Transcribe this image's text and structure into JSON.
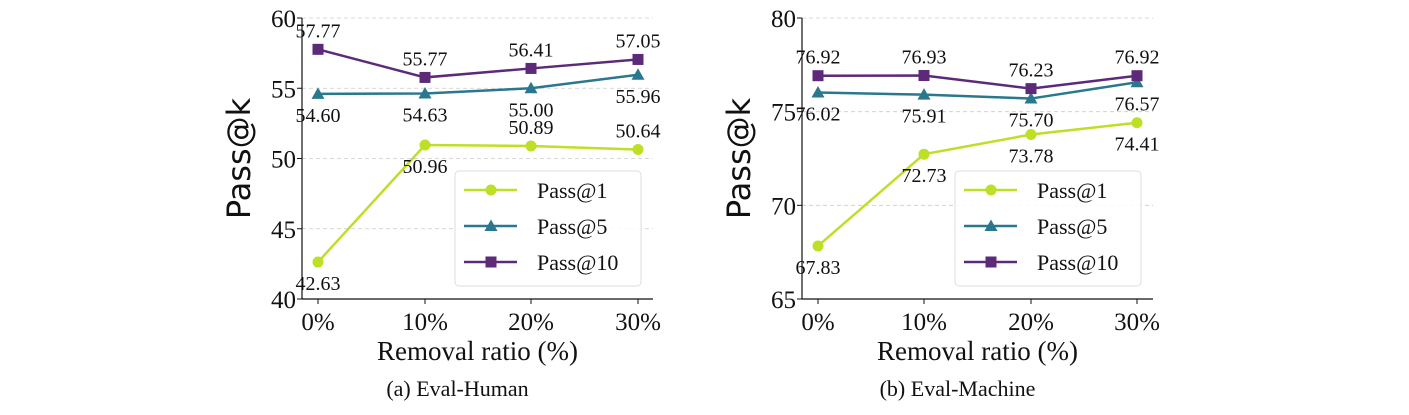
{
  "chart_data": [
    {
      "type": "line",
      "caption": "(a) Eval-Human",
      "xlabel": "Removal ratio (%)",
      "ylabel": "Pass@k",
      "categories": [
        "0%",
        "10%",
        "20%",
        "30%"
      ],
      "ylim": [
        40,
        60
      ],
      "yticks": [
        40,
        45,
        50,
        55,
        60
      ],
      "grid": true,
      "legend": "lower-right",
      "series": [
        {
          "name": "Pass@1",
          "marker": "circle",
          "color": "#bddf26",
          "values": [
            42.63,
            50.96,
            50.89,
            50.64
          ],
          "labels": [
            "42.63",
            "50.96",
            "50.89",
            "50.64"
          ]
        },
        {
          "name": "Pass@5",
          "marker": "triangle",
          "color": "#2a788e",
          "values": [
            54.6,
            54.63,
            55.0,
            55.96
          ],
          "labels": [
            "54.60",
            "54.63",
            "55.00",
            "55.96"
          ]
        },
        {
          "name": "Pass@10",
          "marker": "square",
          "color": "#5c2a78",
          "values": [
            57.77,
            55.77,
            56.41,
            57.05
          ],
          "labels": [
            "57.77",
            "55.77",
            "56.41",
            "57.05"
          ]
        }
      ]
    },
    {
      "type": "line",
      "caption": "(b) Eval-Machine",
      "xlabel": "Removal ratio (%)",
      "ylabel": "Pass@k",
      "categories": [
        "0%",
        "10%",
        "20%",
        "30%"
      ],
      "ylim": [
        65,
        80
      ],
      "yticks": [
        65,
        70,
        75,
        80
      ],
      "grid": true,
      "legend": "lower-right",
      "series": [
        {
          "name": "Pass@1",
          "marker": "circle",
          "color": "#bddf26",
          "values": [
            67.83,
            72.73,
            73.78,
            74.41
          ],
          "labels": [
            "67.83",
            "72.73",
            "73.78",
            "74.41"
          ]
        },
        {
          "name": "Pass@5",
          "marker": "triangle",
          "color": "#2a788e",
          "values": [
            76.02,
            75.91,
            75.7,
            76.57
          ],
          "labels": [
            "76.02",
            "75.91",
            "75.70",
            "76.57"
          ]
        },
        {
          "name": "Pass@10",
          "marker": "square",
          "color": "#5c2a78",
          "values": [
            76.92,
            76.93,
            76.23,
            76.92
          ],
          "labels": [
            "76.92",
            "76.93",
            "76.23",
            "76.92"
          ]
        }
      ]
    }
  ]
}
